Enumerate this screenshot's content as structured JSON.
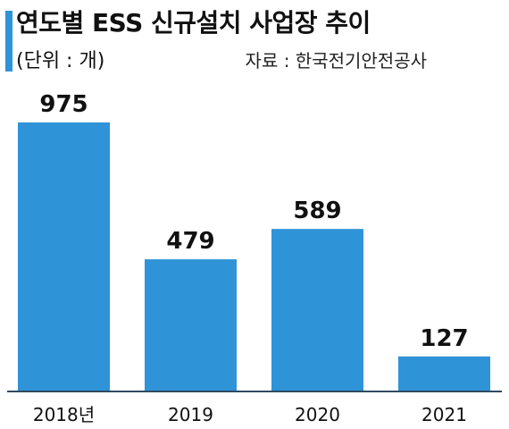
{
  "header": {
    "title": "연도별 ESS 신규설치 사업장 추이",
    "unit": "(단위 : 개)",
    "source": "자료 : 한국전기안전공사"
  },
  "colors": {
    "bar": "#2f93d7",
    "accent": "#2f93d7",
    "axis": "#2f4a63",
    "text": "#111111"
  },
  "chart_data": {
    "type": "bar",
    "categories": [
      "2018년",
      "2019",
      "2020",
      "2021"
    ],
    "values": [
      975,
      479,
      589,
      127
    ],
    "title": "연도별 ESS 신규설치 사업장 추이",
    "xlabel": "",
    "ylabel": "",
    "ylim": [
      0,
      975
    ],
    "grid": false,
    "legend": "none"
  }
}
